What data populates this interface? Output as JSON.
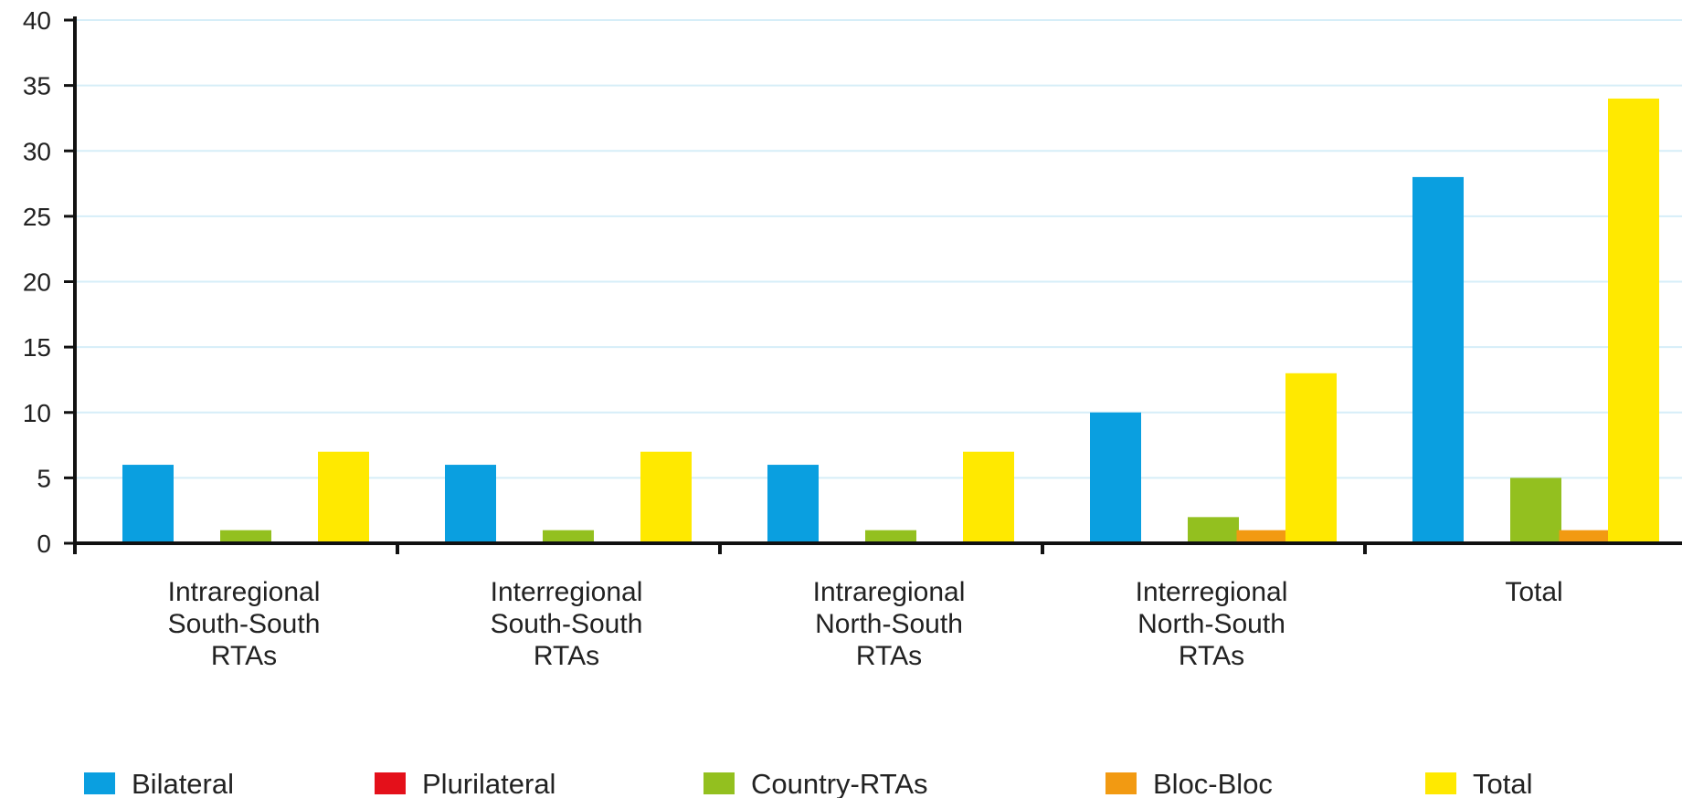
{
  "chart_data": {
    "type": "bar",
    "categories": [
      [
        "Intraregional",
        "South-South",
        "RTAs"
      ],
      [
        "Interregional",
        "South-South",
        "RTAs"
      ],
      [
        "Intraregional",
        "North-South",
        "RTAs"
      ],
      [
        "Interregional",
        "North-South",
        "RTAs"
      ],
      [
        "Total"
      ]
    ],
    "series": [
      {
        "name": "Bilateral",
        "color": "#0a9fe0",
        "values": [
          6,
          6,
          6,
          10,
          28
        ]
      },
      {
        "name": "Plurilateral",
        "color": "#e4101a",
        "values": [
          0,
          0,
          0,
          0,
          0
        ]
      },
      {
        "name": "Country-RTAs",
        "color": "#93c01f",
        "values": [
          1,
          1,
          1,
          2,
          5
        ]
      },
      {
        "name": "Bloc-Bloc",
        "color": "#f29a12",
        "values": [
          0,
          0,
          0,
          1,
          1
        ]
      },
      {
        "name": "Total",
        "color": "#ffe900",
        "values": [
          7,
          7,
          7,
          13,
          34
        ]
      }
    ],
    "yticks": [
      "0",
      "5",
      "10",
      "15",
      "20",
      "25",
      "30",
      "35",
      "40"
    ],
    "ylim": [
      0,
      40
    ],
    "title": "",
    "xlabel": "",
    "ylabel": "",
    "grid": true,
    "grid_color": "#d6eef8",
    "legend_position": "bottom"
  }
}
